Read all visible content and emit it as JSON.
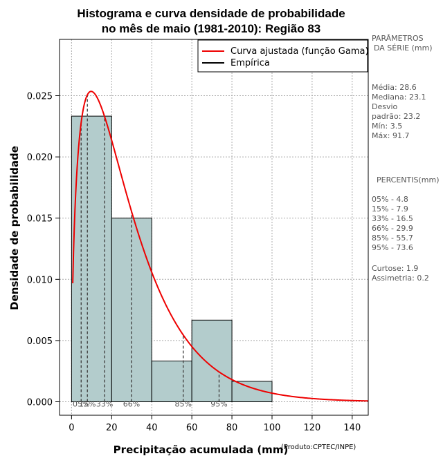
{
  "chart_data": {
    "type": "bar",
    "title_line1": "Histograma e curva densidade de probabilidade",
    "title_line2": "no mês de maio (1981-2010): Região 83",
    "xlabel": "Precipitação acumulada (mm)",
    "ylabel": "Densidade de probabilidade",
    "credit": "(Produto:CPTEC/INPE)",
    "xlim": [
      -6,
      148
    ],
    "ylim": [
      -0.0011,
      0.0296
    ],
    "x_ticks": [
      0,
      20,
      40,
      60,
      80,
      100,
      120,
      140
    ],
    "y_ticks": [
      0.0,
      0.005,
      0.01,
      0.015,
      0.02,
      0.025
    ],
    "x_tick_labels": [
      "0",
      "20",
      "40",
      "60",
      "80",
      "100",
      "120",
      "140"
    ],
    "y_tick_labels": [
      "0.000",
      "0.005",
      "0.010",
      "0.015",
      "0.020",
      "0.025"
    ],
    "bins": [
      {
        "from": 0,
        "to": 20,
        "density": 0.02333
      },
      {
        "from": 20,
        "to": 40,
        "density": 0.015
      },
      {
        "from": 40,
        "to": 60,
        "density": 0.00333
      },
      {
        "from": 60,
        "to": 80,
        "density": 0.00667
      },
      {
        "from": 80,
        "to": 100,
        "density": 0.00167
      }
    ],
    "gamma_fit": {
      "mean": 28.6,
      "sd": 23.2
    },
    "percentile_markers": [
      {
        "label": "05%",
        "value": 4.8
      },
      {
        "label": "15%",
        "value": 7.9
      },
      {
        "label": "33%",
        "value": 16.5
      },
      {
        "label": "66%",
        "value": 29.9
      },
      {
        "label": "85%",
        "value": 55.7
      },
      {
        "label": "95%",
        "value": 73.6
      }
    ],
    "legend": {
      "position": "top-right",
      "items": [
        {
          "label": "Curva ajustada (função Gama)",
          "color": "#ee0000"
        },
        {
          "label": "Empírica",
          "color": "#000000"
        }
      ]
    },
    "colors": {
      "bar_fill": "#b3cccc",
      "curve": "#ee0000",
      "grid": "#aaaaaa"
    }
  },
  "side_panel": {
    "params_title_1": "PARÂMETROS",
    "params_title_2": "DA SÉRIE (mm)",
    "media": "Média:  28.6",
    "mediana": "Mediana:  23.1",
    "desvio_1": "Desvio",
    "desvio_2": "padrão:  23.2",
    "min": "Mín:  3.5",
    "max": "Máx:  91.7",
    "percentis_title": "PERCENTIS(mm)",
    "p05": "05% -  4.8",
    "p15": "15% -  7.9",
    "p33": "33% -  16.5",
    "p66": "66% -  29.9",
    "p85": "85% -  55.7",
    "p95": "95% -  73.6",
    "curtose": "Curtose:  1.9",
    "assimetria": "Assimetria:  0.2"
  }
}
